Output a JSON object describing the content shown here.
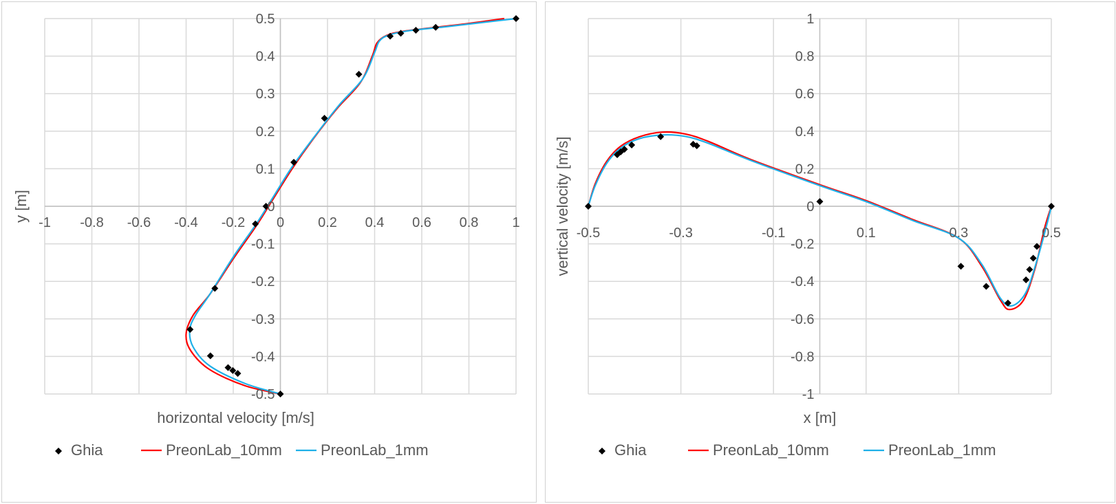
{
  "chart_data": [
    {
      "type": "line",
      "xlabel": "horizontal velocity [m/s]",
      "ylabel": "y [m]",
      "xlim": [
        -1,
        1
      ],
      "ylim": [
        -0.5,
        0.5
      ],
      "grid": true,
      "legend": "bottom",
      "xticks": [
        "-1",
        "-0.8",
        "-0.6",
        "-0.4",
        "-0.2",
        "0",
        "0.2",
        "0.4",
        "0.6",
        "0.8",
        "1"
      ],
      "yticks": [
        "-0.5",
        "-0.4",
        "-0.3",
        "-0.2",
        "-0.1",
        "0",
        "0.1",
        "0.2",
        "0.3",
        "0.4",
        "0.5"
      ],
      "series": [
        {
          "name": "Ghia",
          "style": "marker",
          "color": "#000000",
          "points": [
            [
              1,
              0.5
            ],
            [
              0.659,
              0.4766
            ],
            [
              0.575,
              0.4688
            ],
            [
              0.511,
              0.4609
            ],
            [
              0.466,
              0.4531
            ],
            [
              0.333,
              0.3516
            ],
            [
              0.187,
              0.2344
            ],
            [
              0.057,
              0.1172
            ],
            [
              -0.061,
              0
            ],
            [
              -0.106,
              -0.0469
            ],
            [
              -0.278,
              -0.2187
            ],
            [
              -0.383,
              -0.3281
            ],
            [
              -0.297,
              -0.3984
            ],
            [
              -0.222,
              -0.4297
            ],
            [
              -0.202,
              -0.4375
            ],
            [
              -0.181,
              -0.4453
            ],
            [
              0,
              -0.5
            ]
          ]
        },
        {
          "name": "PreonLab_10mm",
          "style": "line",
          "color": "#ff0000",
          "points": [
            [
              0.95,
              0.5
            ],
            [
              0.8,
              0.487
            ],
            [
              0.65,
              0.476
            ],
            [
              0.52,
              0.466
            ],
            [
              0.45,
              0.455
            ],
            [
              0.41,
              0.435
            ],
            [
              0.39,
              0.4
            ],
            [
              0.34,
              0.33
            ],
            [
              0.24,
              0.26
            ],
            [
              0.14,
              0.18
            ],
            [
              0.05,
              0.1
            ],
            [
              -0.03,
              0.02
            ],
            [
              -0.1,
              -0.05
            ],
            [
              -0.2,
              -0.14
            ],
            [
              -0.3,
              -0.235
            ],
            [
              -0.37,
              -0.29
            ],
            [
              -0.4,
              -0.34
            ],
            [
              -0.38,
              -0.385
            ],
            [
              -0.3,
              -0.435
            ],
            [
              -0.15,
              -0.478
            ],
            [
              0,
              -0.5
            ]
          ]
        },
        {
          "name": "PreonLab_1mm",
          "style": "line",
          "color": "#1fb0e8",
          "points": [
            [
              1,
              0.5
            ],
            [
              0.85,
              0.489
            ],
            [
              0.7,
              0.478
            ],
            [
              0.55,
              0.468
            ],
            [
              0.46,
              0.456
            ],
            [
              0.42,
              0.44
            ],
            [
              0.4,
              0.41
            ],
            [
              0.35,
              0.34
            ],
            [
              0.25,
              0.27
            ],
            [
              0.15,
              0.19
            ],
            [
              0.05,
              0.105
            ],
            [
              -0.03,
              0.025
            ],
            [
              -0.1,
              -0.045
            ],
            [
              -0.2,
              -0.135
            ],
            [
              -0.3,
              -0.235
            ],
            [
              -0.36,
              -0.29
            ],
            [
              -0.385,
              -0.33
            ],
            [
              -0.37,
              -0.375
            ],
            [
              -0.3,
              -0.425
            ],
            [
              -0.15,
              -0.472
            ],
            [
              0,
              -0.5
            ]
          ]
        }
      ]
    },
    {
      "type": "line",
      "xlabel": "x [m]",
      "ylabel": "vertical velocity [m/s]",
      "xlim": [
        -0.5,
        0.5
      ],
      "ylim": [
        -1,
        1
      ],
      "grid": true,
      "legend": "bottom",
      "xticks": [
        "-0.5",
        "-0.3",
        "-0.1",
        "0.1",
        "0.3",
        "0.5"
      ],
      "yticks": [
        "-1",
        "-0.8",
        "-0.6",
        "-0.4",
        "-0.2",
        "0",
        "0.2",
        "0.4",
        "0.6",
        "0.8",
        "1"
      ],
      "series": [
        {
          "name": "Ghia",
          "style": "marker",
          "color": "#000000",
          "points": [
            [
              0.5,
              0
            ],
            [
              0.4688,
              -0.2139
            ],
            [
              0.4609,
              -0.2767
            ],
            [
              0.4531,
              -0.3371
            ],
            [
              0.4453,
              -0.3919
            ],
            [
              0.4063,
              -0.5155
            ],
            [
              0.3594,
              -0.4267
            ],
            [
              0.3047,
              -0.3197
            ],
            [
              0,
              0.0253
            ],
            [
              -0.2656,
              0.3224
            ],
            [
              -0.2734,
              0.3308
            ],
            [
              -0.3437,
              0.371
            ],
            [
              -0.4062,
              0.3263
            ],
            [
              -0.4219,
              0.3035
            ],
            [
              -0.4297,
              0.2901
            ],
            [
              -0.4375,
              0.2749
            ],
            [
              -0.5,
              0
            ]
          ]
        },
        {
          "name": "PreonLab_10mm",
          "style": "line",
          "color": "#ff0000",
          "points": [
            [
              -0.5,
              0
            ],
            [
              -0.485,
              0.12
            ],
            [
              -0.46,
              0.24
            ],
            [
              -0.43,
              0.32
            ],
            [
              -0.39,
              0.37
            ],
            [
              -0.34,
              0.395
            ],
            [
              -0.29,
              0.385
            ],
            [
              -0.24,
              0.345
            ],
            [
              -0.15,
              0.25
            ],
            [
              0,
              0.115
            ],
            [
              0.1,
              0.03
            ],
            [
              0.2,
              -0.07
            ],
            [
              0.3,
              -0.17
            ],
            [
              0.35,
              -0.32
            ],
            [
              0.39,
              -0.5
            ],
            [
              0.41,
              -0.55
            ],
            [
              0.44,
              -0.5
            ],
            [
              0.465,
              -0.33
            ],
            [
              0.485,
              -0.12
            ],
            [
              0.5,
              0
            ]
          ]
        },
        {
          "name": "PreonLab_1mm",
          "style": "line",
          "color": "#1fb0e8",
          "points": [
            [
              -0.5,
              0
            ],
            [
              -0.485,
              0.11
            ],
            [
              -0.46,
              0.23
            ],
            [
              -0.43,
              0.31
            ],
            [
              -0.39,
              0.36
            ],
            [
              -0.34,
              0.38
            ],
            [
              -0.29,
              0.372
            ],
            [
              -0.24,
              0.335
            ],
            [
              -0.15,
              0.245
            ],
            [
              0,
              0.11
            ],
            [
              0.1,
              0.025
            ],
            [
              0.2,
              -0.075
            ],
            [
              0.3,
              -0.17
            ],
            [
              0.35,
              -0.31
            ],
            [
              0.39,
              -0.49
            ],
            [
              0.415,
              -0.53
            ],
            [
              0.445,
              -0.46
            ],
            [
              0.47,
              -0.28
            ],
            [
              0.49,
              -0.1
            ],
            [
              0.5,
              0
            ]
          ]
        }
      ]
    }
  ]
}
